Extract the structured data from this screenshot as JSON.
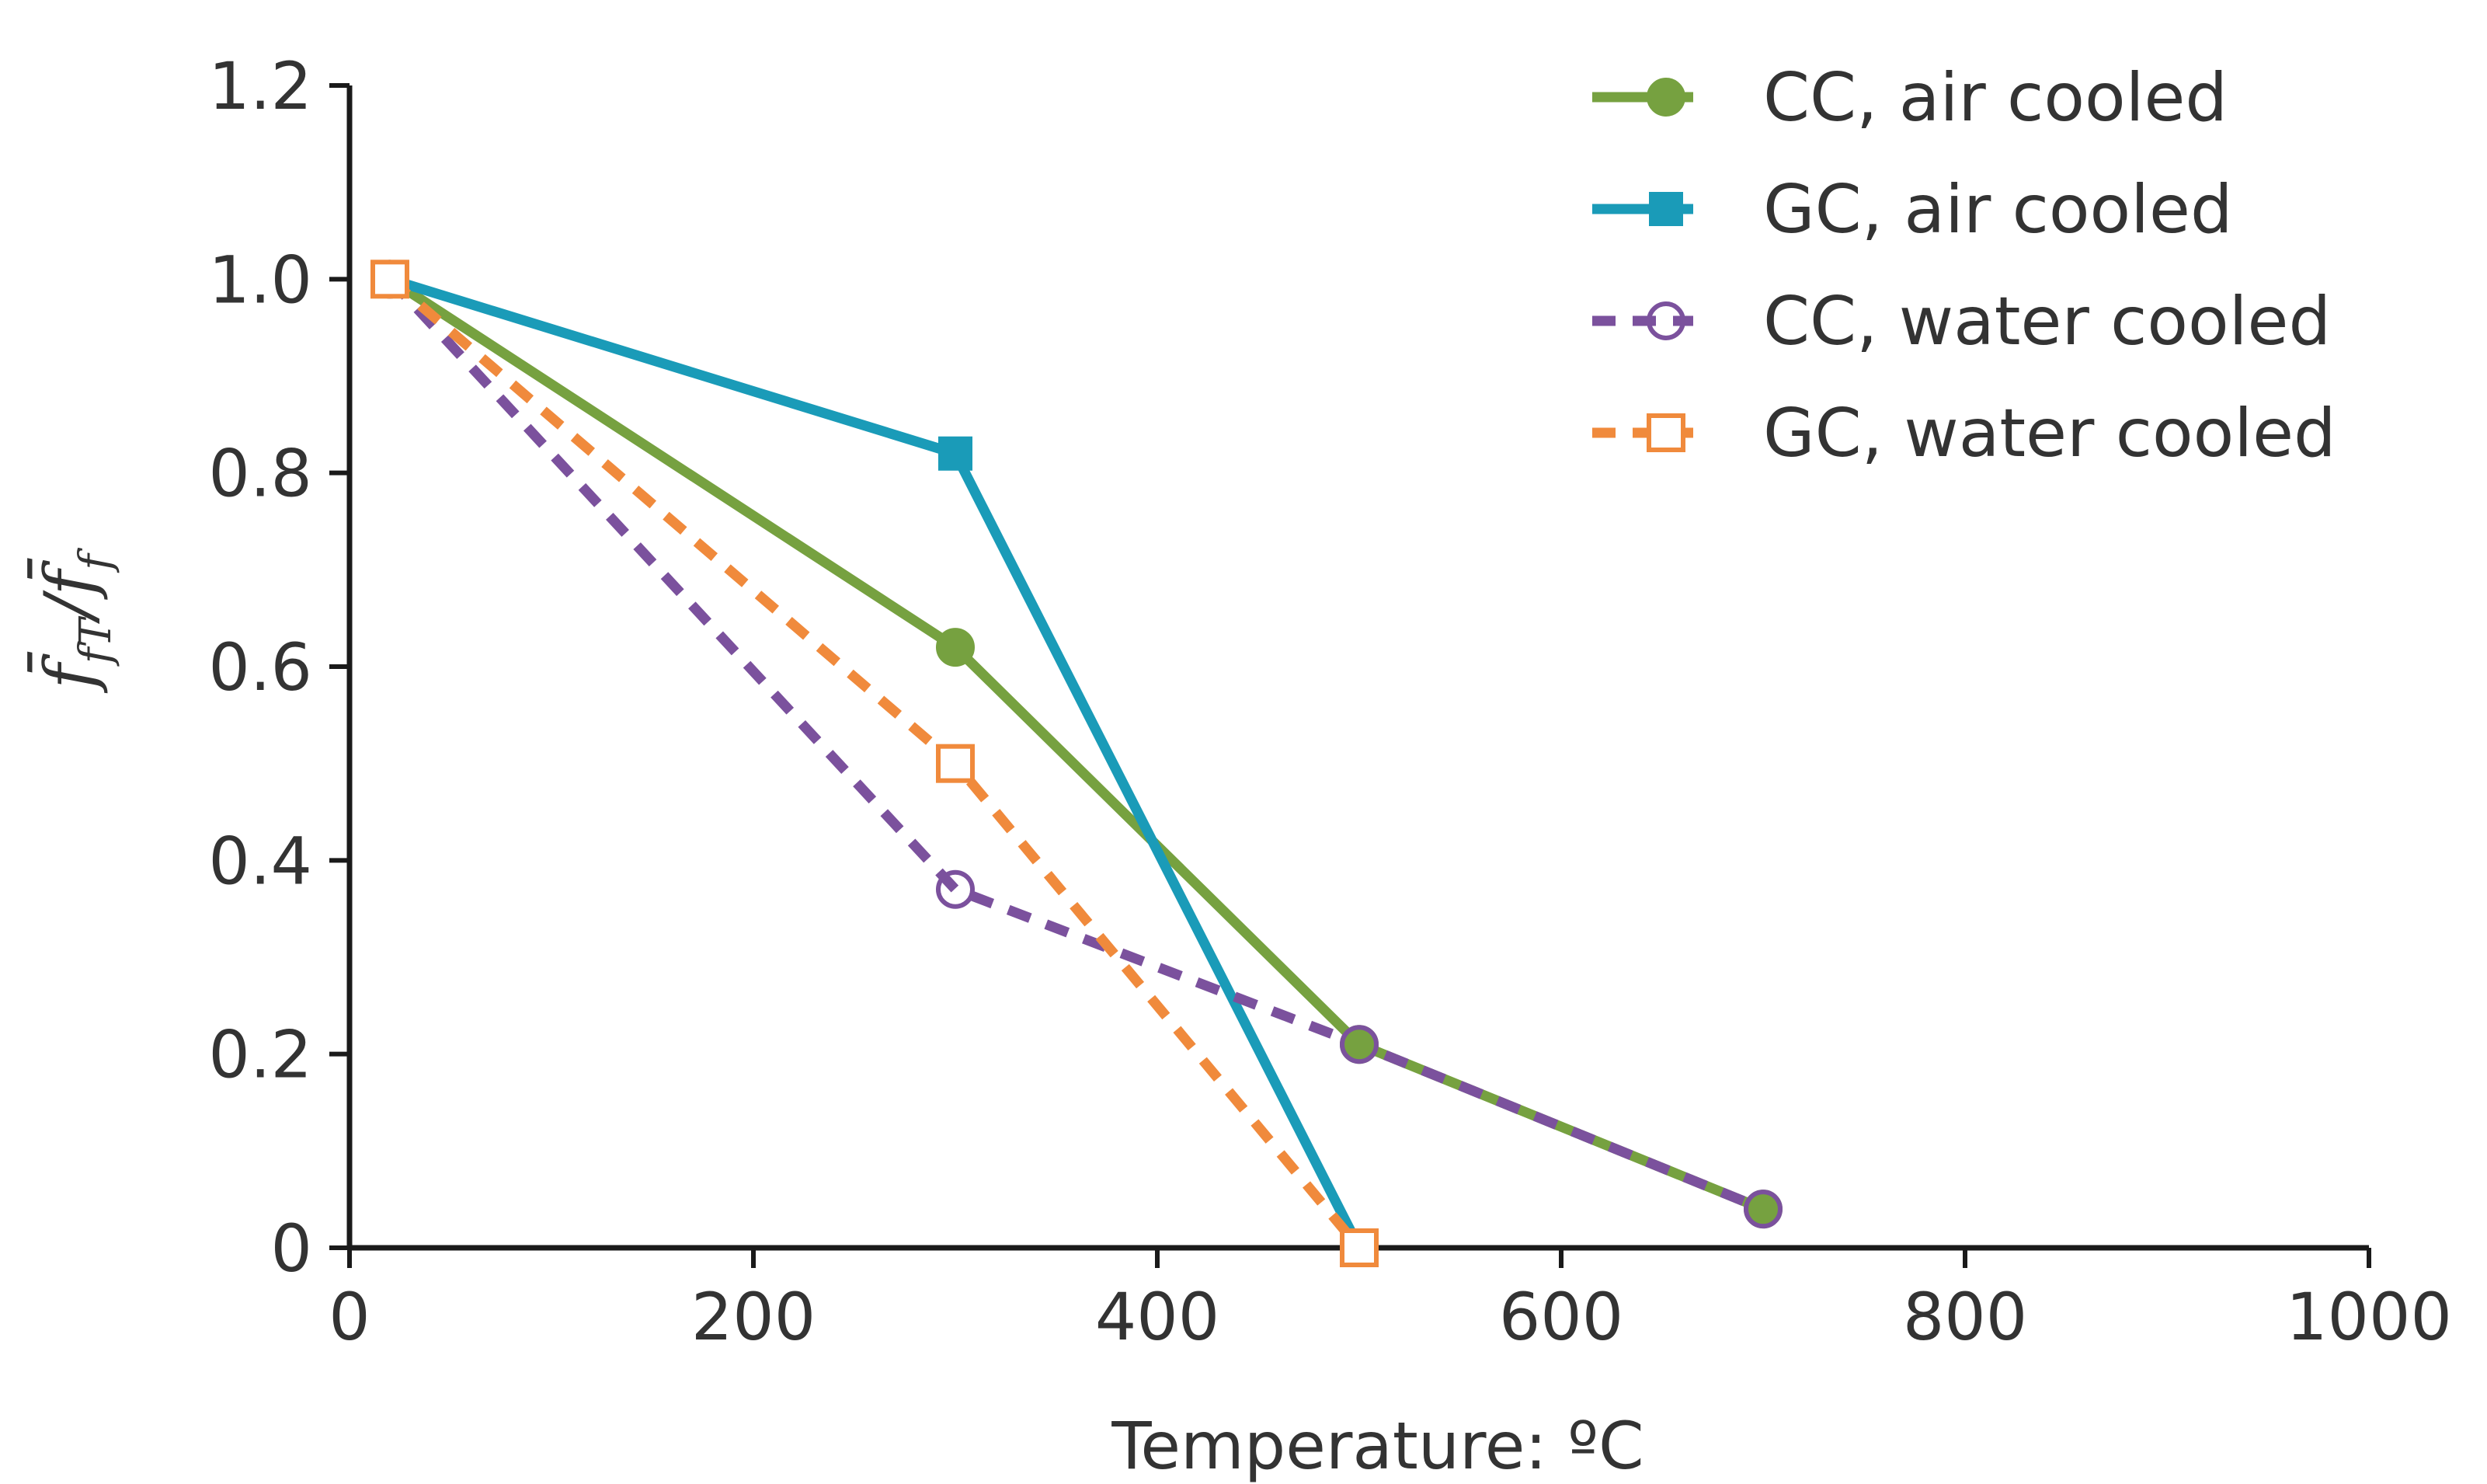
{
  "chart_data": {
    "type": "line",
    "title": "",
    "xlabel": "Temperature: ºC",
    "ylabel": "f̄fT/f̄f",
    "ylabel_parts": {
      "main1": "f̄",
      "sub1": "fT",
      "slash": "/",
      "main2": "f̄",
      "sub2": "f"
    },
    "xlim": [
      0,
      1000
    ],
    "ylim": [
      0,
      1.2
    ],
    "x_ticks": [
      0,
      200,
      400,
      600,
      800,
      1000
    ],
    "x_tick_labels": [
      "0",
      "200",
      "400",
      "600",
      "800",
      "1000"
    ],
    "y_ticks": [
      0,
      0.2,
      0.4,
      0.6,
      0.8,
      1.0,
      1.2
    ],
    "y_tick_labels": [
      "0",
      "0.2",
      "0.4",
      "0.6",
      "0.8",
      "1.0",
      "1.2"
    ],
    "grid": false,
    "legend_position": "top-right",
    "series": [
      {
        "name": "CC, air cooled",
        "color": "#76a140",
        "dash": "solid",
        "marker": "circle-filled",
        "x": [
          20,
          300,
          500,
          700
        ],
        "y": [
          1.0,
          0.62,
          0.21,
          0.04
        ]
      },
      {
        "name": "GC, air cooled",
        "color": "#1a9bb8",
        "dash": "solid",
        "marker": "square-filled",
        "x": [
          20,
          300,
          500
        ],
        "y": [
          1.0,
          0.82,
          0.0
        ]
      },
      {
        "name": "CC, water cooled",
        "color": "#7b519d",
        "dash": "dashed",
        "marker": "circle-open",
        "x": [
          20,
          300,
          500,
          700
        ],
        "y": [
          1.0,
          0.37,
          0.21,
          0.04
        ]
      },
      {
        "name": "GC, water cooled",
        "color": "#f08a3c",
        "dash": "dashed",
        "marker": "square-open",
        "x": [
          20,
          300,
          500
        ],
        "y": [
          1.0,
          0.5,
          0.0
        ]
      }
    ]
  }
}
